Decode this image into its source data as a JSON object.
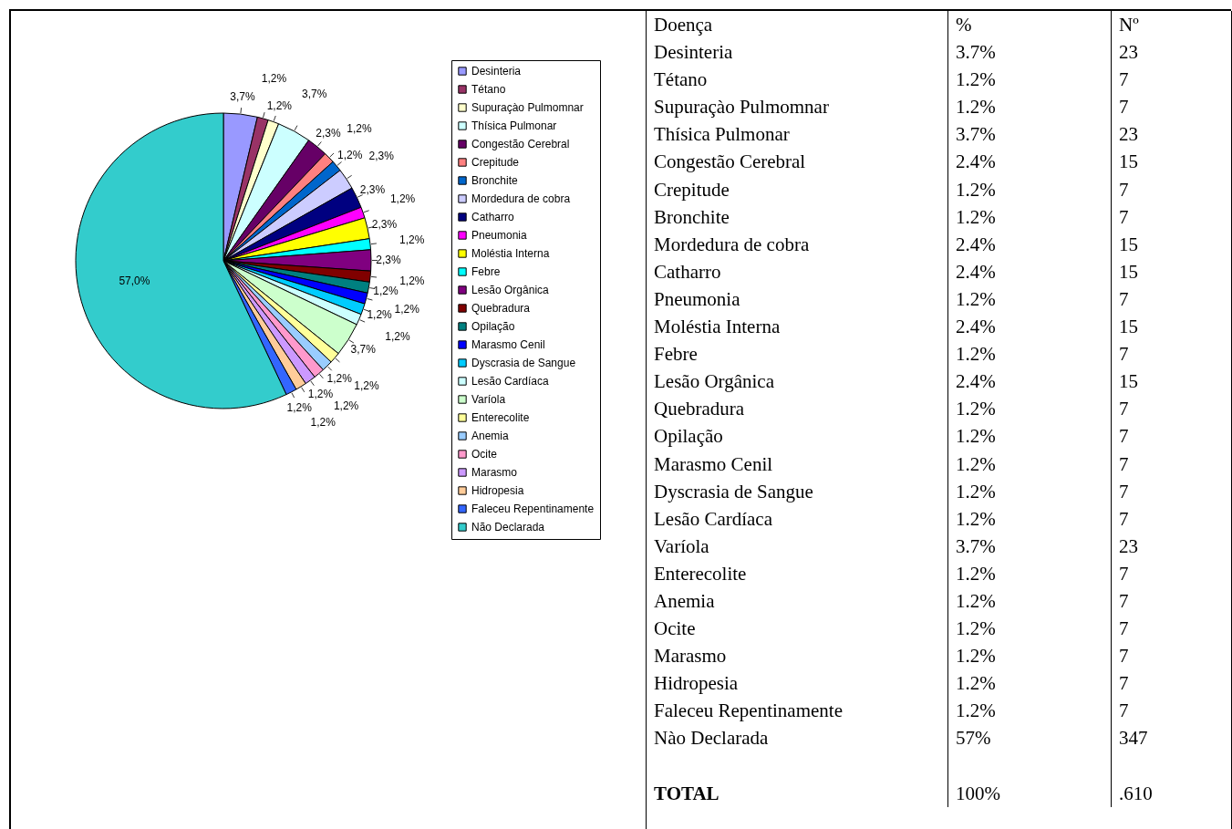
{
  "chart_data": [
    {
      "type": "pie",
      "categories": [
        "Desinteria",
        "Tétano",
        "Supuraçào Pulmomnar",
        "Thísica Pulmonar",
        "Congestão Cerebral",
        "Crepitude",
        "Bronchite",
        "Mordedura de cobra",
        "Catharro",
        "Pneumonia",
        "Moléstia Interna",
        "Febre",
        "Lesão Orgânica",
        "Quebradura",
        "Opilação",
        "Marasmo Cenil",
        "Dyscrasia de Sangue",
        "Lesão Cardíaca",
        "Varíola",
        "Enterecolite",
        "Anemia",
        "Ocite",
        "Marasmo",
        "Hidropesia",
        "Faleceu Repentinamente",
        "Não Declarada"
      ],
      "values": [
        3.7,
        1.2,
        1.2,
        3.7,
        2.3,
        1.2,
        1.2,
        2.3,
        2.3,
        1.2,
        2.3,
        1.2,
        2.3,
        1.2,
        1.2,
        1.2,
        1.2,
        1.2,
        3.7,
        1.2,
        1.2,
        1.2,
        1.2,
        1.2,
        1.2,
        57.0
      ],
      "value_labels": [
        "3,7%",
        "1,2%",
        "1,2%",
        "3,7%",
        "2,3%",
        "1,2%",
        "1,2%",
        "2,3%",
        "2,3%",
        "1,2%",
        "2,3%",
        "1,2%",
        "2,3%",
        "1,2%",
        "1,2%",
        "1,2%",
        "1,2%",
        "1,2%",
        "3,7%",
        "1,2%",
        "1,2%",
        "1,2%",
        "1,2%",
        "1,2%",
        "1,2%",
        "57,0%"
      ],
      "colors": [
        "#9999ff",
        "#993366",
        "#ffffcc",
        "#ccffff",
        "#660066",
        "#ff8080",
        "#0066cc",
        "#ccccff",
        "#000080",
        "#ff00ff",
        "#ffff00",
        "#00ffff",
        "#800080",
        "#800000",
        "#008080",
        "#0000ff",
        "#00ccff",
        "#ccffff",
        "#ccffcc",
        "#ffff99",
        "#99ccff",
        "#ff99cc",
        "#cc99ff",
        "#ffcc99",
        "#3366ff",
        "#33cccc"
      ],
      "legend": "right"
    },
    {
      "type": "other",
      "annotations": [
        "Doença",
        "%",
        "Nº",
        "Desinteria",
        "3.7%",
        "23",
        "Tétano",
        "1.2%",
        "7",
        "Supuraçào Pulmomnar",
        "1.2%",
        "7",
        "Thísica Pulmonar",
        "3.7%",
        "23",
        "Congestão Cerebral",
        "2.4%",
        "15",
        "Crepitude",
        "1.2%",
        "7",
        "Bronchite",
        "1.2%",
        "7",
        "Mordedura de cobra",
        "2.4%",
        "15",
        "Catharro",
        "2.4%",
        "15",
        "Pneumonia",
        "1.2%",
        "7",
        "Moléstia Interna",
        "2.4%",
        "15",
        "Febre",
        "1.2%",
        "7",
        "Lesão Orgânica",
        "2.4%",
        "15",
        "Quebradura",
        "1.2%",
        "7",
        "Opilação",
        "1.2%",
        "7",
        "Marasmo Cenil",
        "1.2%",
        "7",
        "Dyscrasia de Sangue",
        "1.2%",
        "7",
        "Lesão Cardíaca",
        "1.2%",
        "7",
        "Varíola",
        "3.7%",
        "23",
        "Enterecolite",
        "1.2%",
        "7",
        "Anemia",
        "1.2%",
        "7",
        "Ocite",
        "1.2%",
        "7",
        "Marasmo",
        "1.2%",
        "7",
        "Hidropesia",
        "1.2%",
        "7",
        "Faleceu Repentinamente",
        "1.2%",
        "7",
        "Nào Declarada",
        "57%",
        "347",
        "TOTAL",
        "100%",
        ".610"
      ]
    }
  ]
}
